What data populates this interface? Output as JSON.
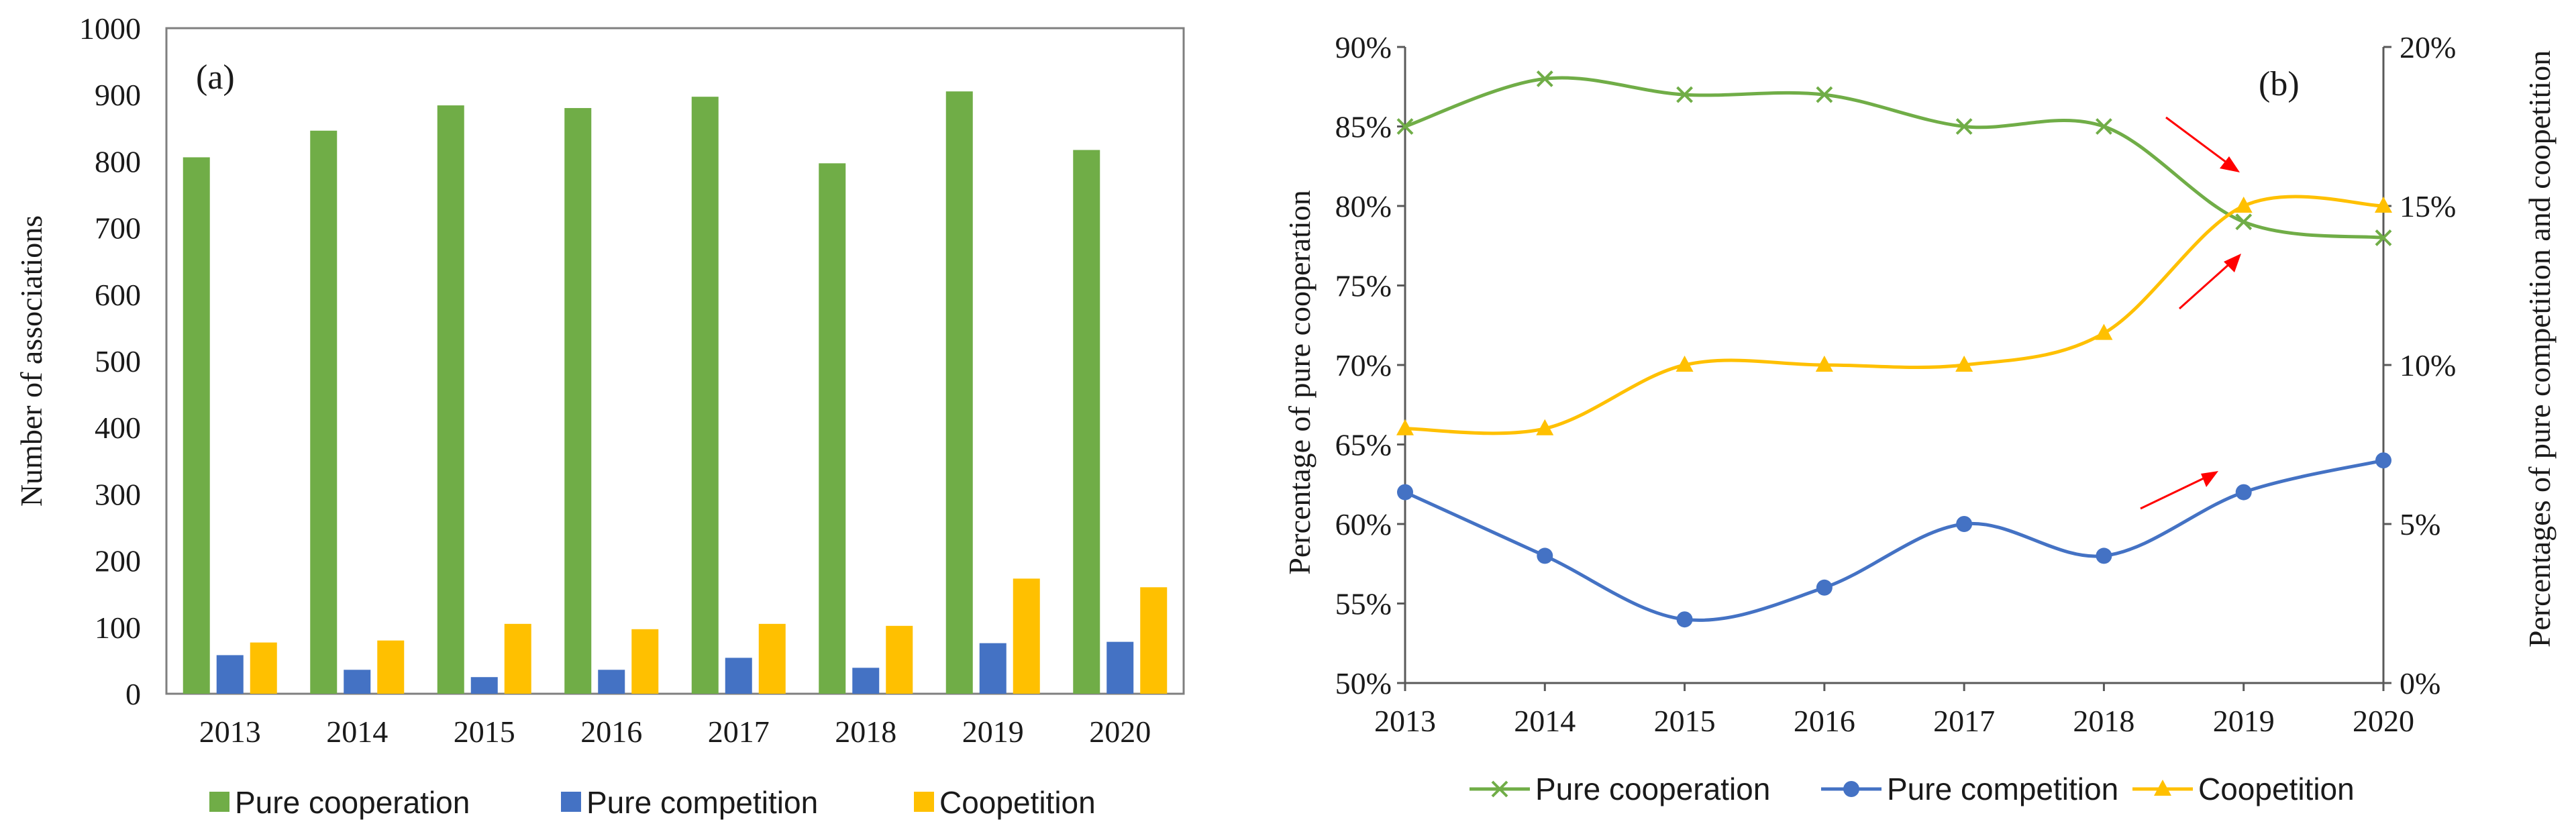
{
  "colors": {
    "cooperation": "#70AD47",
    "competition": "#4472C4",
    "coopetition": "#FFC000",
    "arrow": "#FF0000",
    "axis": "#595959",
    "frame": "#7f7f7f"
  },
  "chart_data": [
    {
      "type": "bar",
      "panel_label": "(a)",
      "ylabel": "Number of associations",
      "ylim": [
        0,
        1000
      ],
      "yticks": [
        0,
        100,
        200,
        300,
        400,
        500,
        600,
        700,
        800,
        900,
        1000
      ],
      "categories": [
        "2013",
        "2014",
        "2015",
        "2016",
        "2017",
        "2018",
        "2019",
        "2020"
      ],
      "series": [
        {
          "name": "Pure cooperation",
          "color_key": "cooperation",
          "values": [
            806,
            846,
            884,
            880,
            897,
            797,
            905,
            817
          ]
        },
        {
          "name": "Pure competition",
          "color_key": "competition",
          "values": [
            58,
            36,
            25,
            36,
            54,
            39,
            76,
            78
          ]
        },
        {
          "name": "Coopetition",
          "color_key": "coopetition",
          "values": [
            77,
            80,
            105,
            97,
            105,
            102,
            173,
            160
          ]
        }
      ],
      "legend_position": "bottom"
    },
    {
      "type": "line",
      "panel_label": "(b)",
      "ylabel_left": "Percentage of pure cooperation",
      "ylabel_right": "Percentages of pure competition and coopetition",
      "ylim_left": [
        50,
        90
      ],
      "ylim_right": [
        0,
        20
      ],
      "yticks_left": [
        "50%",
        "55%",
        "60%",
        "65%",
        "70%",
        "75%",
        "80%",
        "85%",
        "90%"
      ],
      "yticks_right": [
        "0%",
        "5%",
        "10%",
        "15%",
        "20%"
      ],
      "x": [
        "2013",
        "2014",
        "2015",
        "2016",
        "2017",
        "2018",
        "2019",
        "2020"
      ],
      "series": [
        {
          "name": "Pure cooperation",
          "axis": "left",
          "marker": "x",
          "color_key": "cooperation",
          "values": [
            85,
            88,
            87,
            87,
            85,
            85,
            79,
            78
          ]
        },
        {
          "name": "Pure competition",
          "axis": "right",
          "marker": "circle",
          "color_key": "competition",
          "values": [
            6,
            4,
            2,
            3,
            5,
            4,
            6,
            7
          ]
        },
        {
          "name": "Coopetition",
          "axis": "right",
          "marker": "triangle",
          "color_key": "coopetition",
          "values": [
            8,
            8,
            10,
            10,
            10,
            11,
            15,
            15
          ]
        }
      ],
      "annotations": [
        {
          "type": "arrow",
          "description": "down-right arrow toward cooperation drop at 2019"
        },
        {
          "type": "arrow",
          "description": "up-right arrow toward coopetition rise at 2019"
        },
        {
          "type": "arrow",
          "description": "up-right arrow toward competition rise at 2019"
        }
      ],
      "legend_position": "bottom"
    }
  ]
}
